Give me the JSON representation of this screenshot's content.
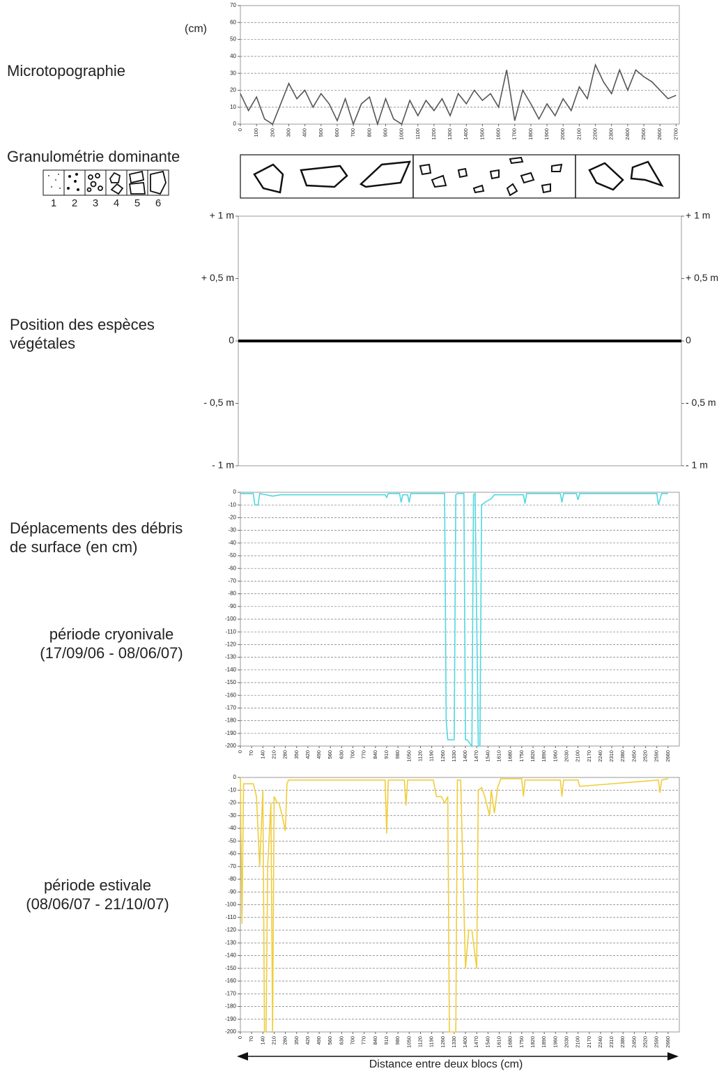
{
  "chart_data": [
    {
      "type": "line",
      "title": "Microtopographie",
      "y_unit": "(cm)",
      "x": [
        0,
        50,
        100,
        150,
        200,
        250,
        300,
        350,
        400,
        450,
        500,
        550,
        600,
        650,
        700,
        750,
        800,
        850,
        900,
        950,
        1000,
        1050,
        1100,
        1150,
        1200,
        1250,
        1300,
        1350,
        1400,
        1450,
        1500,
        1550,
        1600,
        1650,
        1700,
        1750,
        1800,
        1850,
        1900,
        1950,
        2000,
        2050,
        2100,
        2150,
        2200,
        2250,
        2300,
        2350,
        2400,
        2450,
        2500,
        2550,
        2600,
        2650,
        2700
      ],
      "series": [
        {
          "color": "#555555",
          "values": [
            18,
            8,
            16,
            3,
            0,
            12,
            24,
            15,
            20,
            10,
            18,
            12,
            2,
            15,
            0,
            12,
            16,
            0,
            15,
            3,
            0,
            14,
            5,
            14,
            8,
            15,
            5,
            18,
            12,
            20,
            14,
            18,
            10,
            32,
            2,
            20,
            12,
            3,
            12,
            5,
            15,
            8,
            22,
            15,
            35,
            25,
            18,
            32,
            20,
            32,
            28,
            25,
            20,
            15,
            17
          ]
        }
      ],
      "xlim": [
        0,
        2720
      ],
      "xticks": [
        0,
        100,
        200,
        300,
        400,
        500,
        600,
        700,
        800,
        900,
        1000,
        1100,
        1200,
        1300,
        1400,
        1500,
        1600,
        1700,
        1800,
        1900,
        2000,
        2100,
        2200,
        2300,
        2400,
        2500,
        2600,
        2700
      ],
      "ylim": [
        0,
        70
      ],
      "yticks": [
        0,
        10,
        20,
        30,
        40,
        50,
        60,
        70
      ],
      "grid": true
    },
    {
      "type": "line",
      "title": "Position des espèces végétales",
      "zero_line": true,
      "ylim": [
        -1,
        1
      ],
      "yticks": [
        {
          "value": 1,
          "label": "+ 1 m"
        },
        {
          "value": 0.5,
          "label": "+ 0,5 m"
        },
        0,
        {
          "value": -0.5,
          "label": "- 0,5 m"
        },
        {
          "value": -1,
          "label": "- 1 m"
        }
      ],
      "y2lim": [
        -1,
        1
      ],
      "y2ticks": [
        {
          "value": 1,
          "label": "+ 1 m"
        },
        {
          "value": 0.5,
          "label": "+ 0,5 m"
        },
        0,
        {
          "value": -0.5,
          "label": "- 0,5 m"
        },
        {
          "value": -1,
          "label": "- 1 m"
        }
      ],
      "grid": false
    },
    {
      "type": "line",
      "title": "Déplacements des débris de surface (en cm)",
      "subtitle": "période cryonivale",
      "period": "(17/09/06 - 08/06/07)",
      "x": [
        0,
        80,
        90,
        110,
        120,
        200,
        250,
        900,
        910,
        920,
        990,
        1000,
        1010,
        1040,
        1050,
        1060,
        1270,
        1280,
        1290,
        1330,
        1340,
        1350,
        1390,
        1400,
        1410,
        1440,
        1450,
        1460,
        1480,
        1490,
        1500,
        1520,
        1560,
        1580,
        1760,
        1770,
        1780,
        1990,
        2000,
        2010,
        2090,
        2100,
        2110,
        2590,
        2600,
        2620,
        2660
      ],
      "series": [
        {
          "color": "#4fd8e0",
          "values": [
            -1,
            -1,
            -10,
            -10,
            -1,
            -3,
            -2,
            -2,
            -4,
            -1,
            -1,
            -8,
            -2,
            -2,
            -8,
            -1,
            -1,
            -180,
            -195,
            -195,
            -2,
            -1,
            -1,
            -195,
            -195,
            -200,
            -2,
            -1,
            -200,
            -200,
            -10,
            -8,
            -5,
            -2,
            -2,
            -9,
            -1,
            -1,
            -8,
            -1,
            -1,
            -6,
            -1,
            -1,
            -10,
            -1,
            -1
          ]
        }
      ],
      "xlim": [
        0,
        2730
      ],
      "xticks": [
        0,
        70,
        140,
        210,
        280,
        350,
        420,
        490,
        560,
        630,
        700,
        770,
        840,
        910,
        980,
        1050,
        1120,
        1190,
        1260,
        1330,
        1400,
        1470,
        1540,
        1610,
        1680,
        1750,
        1820,
        1890,
        1960,
        2030,
        2100,
        2170,
        2240,
        2310,
        2380,
        2450,
        2520,
        2590,
        2660
      ],
      "ylim": [
        -200,
        0
      ],
      "yticks": [
        0,
        -10,
        -20,
        -30,
        -40,
        -50,
        -60,
        -70,
        -80,
        -90,
        -100,
        -110,
        -120,
        -130,
        -140,
        -150,
        -160,
        -170,
        -180,
        -190,
        -200
      ],
      "grid": true
    },
    {
      "type": "line",
      "subtitle": "période estivale",
      "period": "(08/06/07 - 21/10/07)",
      "xlabel": "Distance entre deux blocs (cm)",
      "x": [
        0,
        10,
        20,
        80,
        100,
        120,
        140,
        150,
        160,
        170,
        190,
        200,
        210,
        230,
        240,
        260,
        280,
        290,
        300,
        900,
        910,
        920,
        1020,
        1030,
        1040,
        1200,
        1220,
        1250,
        1270,
        1290,
        1300,
        1340,
        1350,
        1370,
        1400,
        1420,
        1440,
        1470,
        1480,
        1500,
        1520,
        1550,
        1560,
        1580,
        1600,
        1620,
        1750,
        1760,
        1770,
        1800,
        1990,
        2000,
        2010,
        2100,
        2110,
        2600,
        2610,
        2620,
        2660
      ],
      "series": [
        {
          "color": "#f0cd3c",
          "values": [
            0,
            -115,
            -5,
            -5,
            -15,
            -70,
            -10,
            -200,
            -200,
            -70,
            -20,
            -200,
            -15,
            -20,
            -20,
            -30,
            -42,
            -5,
            -2,
            -2,
            -44,
            -2,
            -2,
            -22,
            -2,
            -2,
            -15,
            -15,
            -20,
            -15,
            -200,
            -200,
            -2,
            -2,
            -150,
            -120,
            -120,
            -150,
            -10,
            -8,
            -15,
            -30,
            -10,
            -28,
            -8,
            -1,
            -1,
            -15,
            -2,
            -2,
            -2,
            -15,
            -2,
            -2,
            -7,
            -2,
            -12,
            -2,
            -1
          ]
        }
      ],
      "xlim": [
        0,
        2730
      ],
      "xticks": [
        0,
        70,
        140,
        210,
        280,
        350,
        420,
        490,
        560,
        630,
        700,
        770,
        840,
        910,
        980,
        1050,
        1120,
        1190,
        1260,
        1330,
        1400,
        1470,
        1540,
        1610,
        1680,
        1750,
        1820,
        1890,
        1960,
        2030,
        2100,
        2170,
        2240,
        2310,
        2380,
        2450,
        2520,
        2590,
        2660
      ],
      "ylim": [
        -200,
        0
      ],
      "yticks": [
        0,
        -10,
        -20,
        -30,
        -40,
        -50,
        -60,
        -70,
        -80,
        -90,
        -100,
        -110,
        -120,
        -130,
        -140,
        -150,
        -160,
        -170,
        -180,
        -190,
        -200
      ],
      "grid": true
    }
  ],
  "granulometry": {
    "title": "Granulométrie dominante",
    "legend": [
      "1",
      "2",
      "3",
      "4",
      "5",
      "6"
    ]
  }
}
